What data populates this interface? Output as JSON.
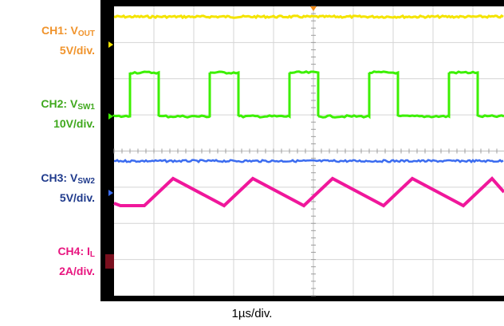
{
  "chart_data": {
    "type": "line",
    "xlabel": "1µs/div.",
    "channels": [
      {
        "id": "CH1",
        "name": "CH1: ",
        "signal": "V",
        "sub": "OUT",
        "scale": "5V/div.",
        "color": "#f0932b",
        "trace_color": "#f4e400",
        "shape": "dc"
      },
      {
        "id": "CH2",
        "name": "CH2: ",
        "signal": "V",
        "sub": "SW1",
        "scale": "10V/div.",
        "color": "#3fa81d",
        "trace_color": "#3cf000",
        "shape": "pulse"
      },
      {
        "id": "CH3",
        "name": "CH3: ",
        "signal": "V",
        "sub": "SW2",
        "scale": "5V/div.",
        "color": "#1f3a8c",
        "trace_color": "#3b6cf0",
        "shape": "dc"
      },
      {
        "id": "CH4",
        "name": "CH4: ",
        "signal": "I",
        "sub": "L",
        "scale": "2A/div.",
        "color": "#e8157f",
        "trace_color": "#f0179b",
        "shape": "triangle"
      }
    ],
    "grid": {
      "horizontal_divisions": 10,
      "vertical_divisions": 8
    },
    "grid_visible": true
  }
}
